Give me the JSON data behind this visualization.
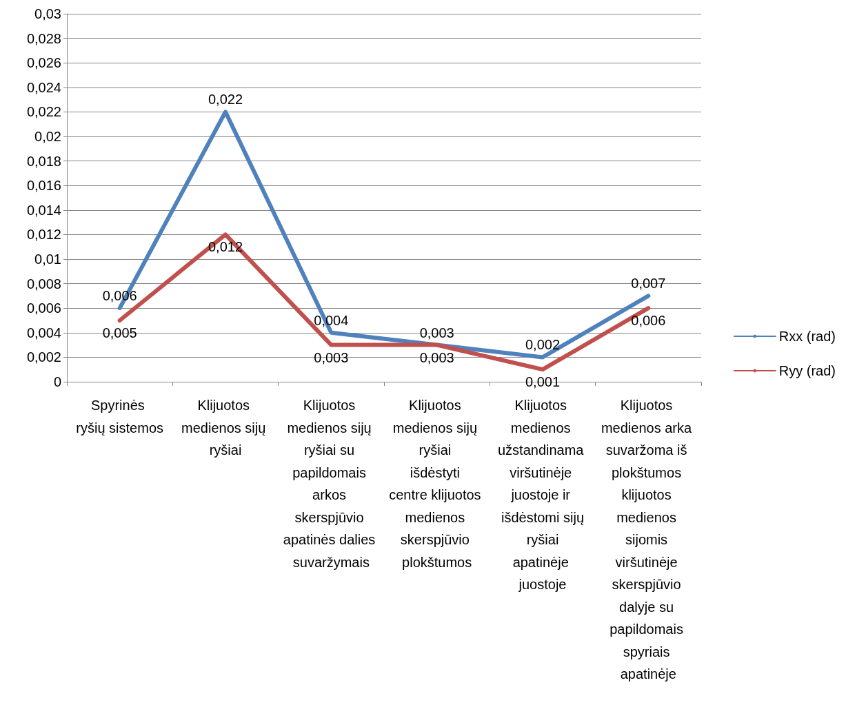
{
  "chart_data": {
    "type": "line",
    "categories": [
      "Spyrinės ryšių sistemos",
      "Klijuotos medienos sijų ryšiai",
      "Klijuotos medienos sijų ryšiai su papildomais arkos skerspjūvio apatinės dalies suvaržymais",
      "Klijuotos medienos sijų ryšiai išdėstyti centre klijuotos medienos skerspjūvio plokštumos",
      "Klijuotos medienos užstandinama viršutinėje juostoje ir išdėstomi sijų ryšiai apatinėje juostoje",
      "Klijuotos medienos arka suvaržoma iš plokštumos klijuotos medienos sijomis viršutinėje skerspjūvio dalyje su papildomais spyriais apatinėje"
    ],
    "series": [
      {
        "name": "Rxx (rad)",
        "color": "#4f81bd",
        "values": [
          0.006,
          0.022,
          0.004,
          0.003,
          0.002,
          0.007
        ],
        "value_labels": [
          "0,006",
          "0,022",
          "0,004",
          "0,003",
          "0,002",
          "0,007"
        ]
      },
      {
        "name": "Ryy (rad)",
        "color": "#c0504d",
        "values": [
          0.005,
          0.012,
          0.003,
          0.003,
          0.001,
          0.006
        ],
        "value_labels": [
          "0,005",
          "0,012",
          "0,003",
          "0,003",
          "0,001",
          "0,006"
        ]
      }
    ],
    "ylim": [
      0,
      0.03
    ],
    "yticks": [
      {
        "value": 0,
        "label": "0"
      },
      {
        "value": 0.002,
        "label": "0,002"
      },
      {
        "value": 0.004,
        "label": "0,004"
      },
      {
        "value": 0.006,
        "label": "0,006"
      },
      {
        "value": 0.008,
        "label": "0,008"
      },
      {
        "value": 0.01,
        "label": "0,01"
      },
      {
        "value": 0.012,
        "label": "0,012"
      },
      {
        "value": 0.014,
        "label": "0,014"
      },
      {
        "value": 0.016,
        "label": "0,016"
      },
      {
        "value": 0.018,
        "label": "0,018"
      },
      {
        "value": 0.02,
        "label": "0,02"
      },
      {
        "value": 0.022,
        "label": "0,022"
      },
      {
        "value": 0.024,
        "label": "0,024"
      },
      {
        "value": 0.026,
        "label": "0,026"
      },
      {
        "value": 0.028,
        "label": "0,028"
      },
      {
        "value": 0.03,
        "label": "0,03"
      }
    ],
    "grid": "y",
    "legend": "right",
    "marker": "none",
    "line_style": "solid"
  }
}
